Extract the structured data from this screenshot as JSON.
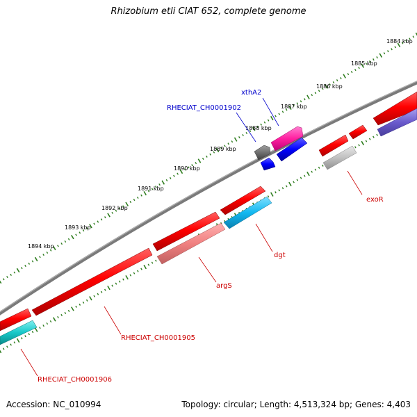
{
  "title": "Rhizobium etli CIAT 652, complete genome",
  "footer": {
    "accession": "Accession: NC_010994",
    "topology": "Topology: circular; Length: 4,513,324 bp; Genes: 4,403"
  },
  "ticks": [
    {
      "label": "1884 kbp"
    },
    {
      "label": "1885 kbp"
    },
    {
      "label": "1886 kbp"
    },
    {
      "label": "1887 kbp"
    },
    {
      "label": "1888 kbp"
    },
    {
      "label": "1889 kbp"
    },
    {
      "label": "1890 kbp"
    },
    {
      "label": "1891 kbp"
    },
    {
      "label": "1892 kbp"
    },
    {
      "label": "1893 kbp"
    },
    {
      "label": "1894 kbp"
    }
  ],
  "gene_labels": {
    "xthA2": "xthA2",
    "RHECIAT_CH0001902": "RHECIAT_CH0001902",
    "exoR": "exoR",
    "dgt": "dgt",
    "argS": "argS",
    "RHECIAT_CH0001905": "RHECIAT_CH0001905",
    "RHECIAT_CH0001906": "RHECIAT_CH0001906"
  },
  "colors": {
    "backbone": "#808080",
    "tick": "#2e7d1e",
    "forward_label": "#0000cc",
    "reverse_label": "#cc0000",
    "cds": "#ff0000",
    "cds_light": "#f08080",
    "blue": "#0000ff",
    "magenta": "#ff1fa0",
    "cyan": "#13b8f0",
    "teal": "#17c8c8",
    "purple": "#6a5acd",
    "gray": "#707070",
    "light_gray": "#c0c0c0"
  }
}
